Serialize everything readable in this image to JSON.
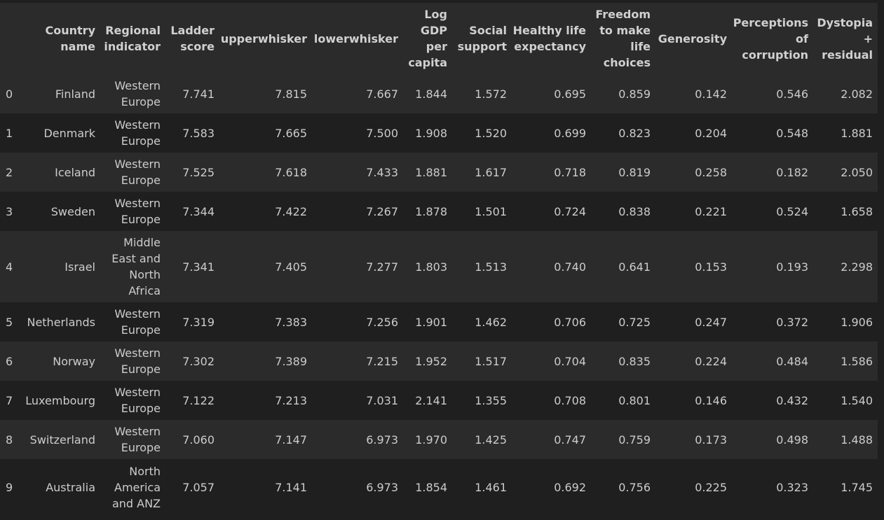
{
  "table": {
    "columns": [
      "",
      "Country name",
      "Regional indicator",
      "Ladder score",
      "upperwhisker",
      "lowerwhisker",
      "Log GDP per capita",
      "Social support",
      "Healthy life expectancy",
      "Freedom to make life choices",
      "Generosity",
      "Perceptions of corruption",
      "Dystopia + residual"
    ],
    "rows": [
      [
        "0",
        "Finland",
        "Western Europe",
        "7.741",
        "7.815",
        "7.667",
        "1.844",
        "1.572",
        "0.695",
        "0.859",
        "0.142",
        "0.546",
        "2.082"
      ],
      [
        "1",
        "Denmark",
        "Western Europe",
        "7.583",
        "7.665",
        "7.500",
        "1.908",
        "1.520",
        "0.699",
        "0.823",
        "0.204",
        "0.548",
        "1.881"
      ],
      [
        "2",
        "Iceland",
        "Western Europe",
        "7.525",
        "7.618",
        "7.433",
        "1.881",
        "1.617",
        "0.718",
        "0.819",
        "0.258",
        "0.182",
        "2.050"
      ],
      [
        "3",
        "Sweden",
        "Western Europe",
        "7.344",
        "7.422",
        "7.267",
        "1.878",
        "1.501",
        "0.724",
        "0.838",
        "0.221",
        "0.524",
        "1.658"
      ],
      [
        "4",
        "Israel",
        "Middle East and North Africa",
        "7.341",
        "7.405",
        "7.277",
        "1.803",
        "1.513",
        "0.740",
        "0.641",
        "0.153",
        "0.193",
        "2.298"
      ],
      [
        "5",
        "Netherlands",
        "Western Europe",
        "7.319",
        "7.383",
        "7.256",
        "1.901",
        "1.462",
        "0.706",
        "0.725",
        "0.247",
        "0.372",
        "1.906"
      ],
      [
        "6",
        "Norway",
        "Western Europe",
        "7.302",
        "7.389",
        "7.215",
        "1.952",
        "1.517",
        "0.704",
        "0.835",
        "0.224",
        "0.484",
        "1.586"
      ],
      [
        "7",
        "Luxembourg",
        "Western Europe",
        "7.122",
        "7.213",
        "7.031",
        "2.141",
        "1.355",
        "0.708",
        "0.801",
        "0.146",
        "0.432",
        "1.540"
      ],
      [
        "8",
        "Switzerland",
        "Western Europe",
        "7.060",
        "7.147",
        "6.973",
        "1.970",
        "1.425",
        "0.747",
        "0.759",
        "0.173",
        "0.498",
        "1.488"
      ],
      [
        "9",
        "Australia",
        "North America and ANZ",
        "7.057",
        "7.141",
        "6.973",
        "1.854",
        "1.461",
        "0.692",
        "0.756",
        "0.225",
        "0.323",
        "1.745"
      ]
    ]
  },
  "colors": {
    "background": "#1f1f1f",
    "row_alt": "#2b2b2b",
    "text": "#cccccc"
  }
}
